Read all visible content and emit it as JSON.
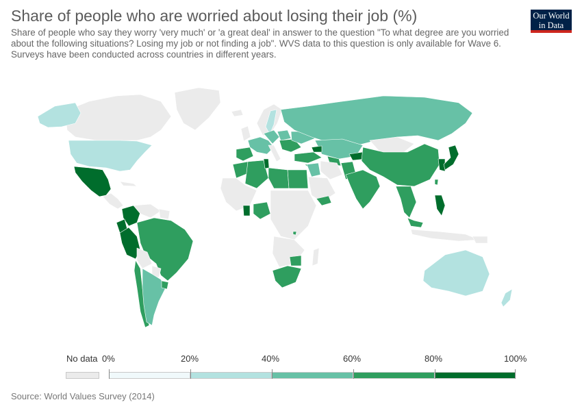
{
  "header": {
    "title": "Share of people who are worried about losing their job (%)",
    "subtitle": "Share of people who say they worry 'very much' or 'a great deal' in answer to the question \"To what degree are you worried about the following situations? Losing my job or not finding a job\". WVS data to this question is only available for Wave 6. Surveys have been conducted across countries in different years.",
    "logo_line1": "Our World",
    "logo_line2": "in Data"
  },
  "colors": {
    "no_data": "#ebebeb",
    "bin_0_20": "#f0f9fb",
    "bin_20_40": "#b3e2e0",
    "bin_40_60": "#67c1a6",
    "bin_60_80": "#2f9e5f",
    "bin_80_100": "#006d2c",
    "land_border": "#ffffff",
    "logo_bg": "#002147",
    "logo_accent": "#ce261e"
  },
  "legend": {
    "no_data_label": "No data",
    "ticks": [
      "0%",
      "20%",
      "40%",
      "60%",
      "80%",
      "100%"
    ]
  },
  "source": "Source: World Values Survey (2014)"
}
